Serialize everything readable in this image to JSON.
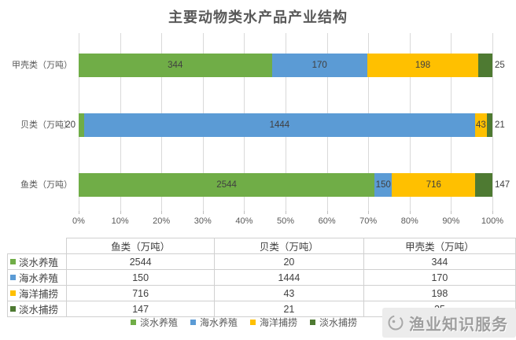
{
  "title": "主要动物类水产品产业结构",
  "chart_data": {
    "type": "bar",
    "subtype": "100%-stacked-horizontal",
    "title": "主要动物类水产品产业结构",
    "categories": [
      "甲壳类（万吨）",
      "贝类（万吨）",
      "鱼类（万吨）"
    ],
    "series": [
      {
        "name": "淡水养殖",
        "color": "#70AD47",
        "values": [
          344,
          20,
          2544
        ]
      },
      {
        "name": "海水养殖",
        "color": "#5B9BD5",
        "values": [
          170,
          1444,
          150
        ]
      },
      {
        "name": "海洋捕捞",
        "color": "#FFC000",
        "values": [
          198,
          43,
          716
        ]
      },
      {
        "name": "淡水捕捞",
        "color": "#4E7A32",
        "values": [
          25,
          21,
          147
        ]
      }
    ],
    "x_ticks": [
      "0%",
      "10%",
      "20%",
      "30%",
      "40%",
      "50%",
      "60%",
      "70%",
      "80%",
      "90%",
      "100%"
    ],
    "xlim": [
      0,
      1
    ],
    "grid": true,
    "legend_position": "bottom"
  },
  "table": {
    "columns": [
      "鱼类（万吨）",
      "贝类（万吨）",
      "甲壳类（万吨）"
    ],
    "rows": [
      {
        "label": "淡水养殖",
        "color": "#70AD47",
        "values": [
          "2544",
          "20",
          "344"
        ]
      },
      {
        "label": "海水养殖",
        "color": "#5B9BD5",
        "values": [
          "150",
          "1444",
          "170"
        ]
      },
      {
        "label": "海洋捕捞",
        "color": "#FFC000",
        "values": [
          "716",
          "43",
          "198"
        ]
      },
      {
        "label": "淡水捕捞",
        "color": "#4E7A32",
        "values": [
          "147",
          "21",
          "25"
        ]
      }
    ]
  },
  "watermark": {
    "text": "渔业知识服务"
  },
  "colors": {
    "grid": "#d9d9d9",
    "axis_text": "#595959",
    "label_text": "#404040",
    "watermark_text": "#9e9e9e"
  }
}
